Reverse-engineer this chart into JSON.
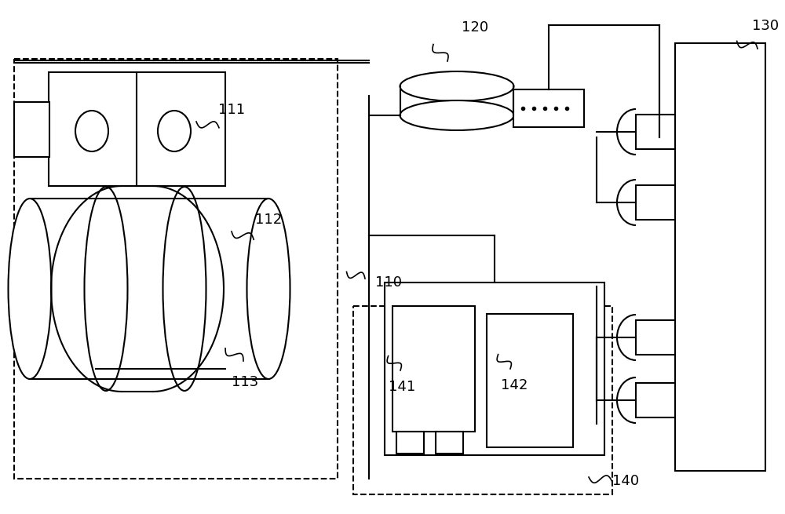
{
  "bg_color": "#ffffff",
  "lw": 1.5,
  "fs": 13
}
